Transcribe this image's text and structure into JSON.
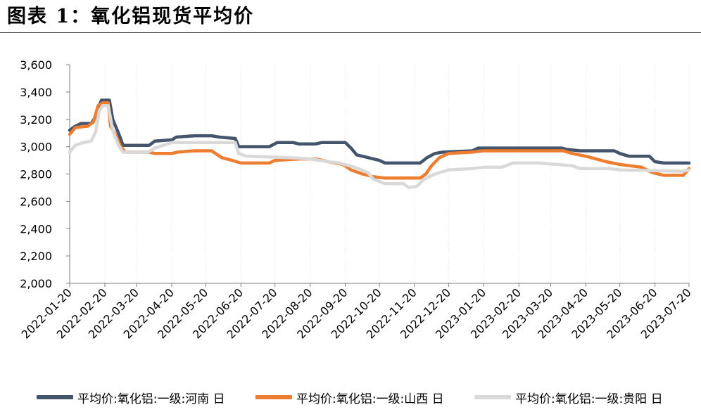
{
  "title": "图表  1：氧化铝现货平均价",
  "chart_data": {
    "type": "line",
    "title": "图表  1：氧化铝现货平均价",
    "ylim": [
      2000,
      3600
    ],
    "yticks": [
      "2,000",
      "2,200",
      "2,400",
      "2,600",
      "2,800",
      "3,000",
      "3,200",
      "3,400",
      "3,600"
    ],
    "xticks": [
      "2022-01-20",
      "2022-02-20",
      "2022-03-20",
      "2022-04-20",
      "2022-05-20",
      "2022-06-20",
      "2022-07-20",
      "2022-08-20",
      "2022-09-20",
      "2022-10-20",
      "2022-11-20",
      "2022-12-20",
      "2023-01-20",
      "2023-02-20",
      "2023-03-20",
      "2023-04-20",
      "2023-05-20",
      "2023-06-20",
      "2023-07-20"
    ],
    "xlim": [
      "2022-01-20",
      "2023-07-20"
    ],
    "grid": "vertical",
    "legend_position": "bottom",
    "series": [
      {
        "name": "平均价:氧化铝:一级:河南 日",
        "color": "#44546a",
        "points": [
          [
            "2022-01-20",
            3120
          ],
          [
            "2022-01-25",
            3150
          ],
          [
            "2022-01-30",
            3170
          ],
          [
            "2022-02-08",
            3170
          ],
          [
            "2022-02-12",
            3220
          ],
          [
            "2022-02-15",
            3300
          ],
          [
            "2022-02-17",
            3340
          ],
          [
            "2022-02-24",
            3340
          ],
          [
            "2022-02-27",
            3200
          ],
          [
            "2022-03-04",
            3100
          ],
          [
            "2022-03-08",
            3010
          ],
          [
            "2022-03-31",
            3010
          ],
          [
            "2022-04-05",
            3040
          ],
          [
            "2022-04-20",
            3050
          ],
          [
            "2022-04-24",
            3070
          ],
          [
            "2022-05-10",
            3080
          ],
          [
            "2022-05-25",
            3080
          ],
          [
            "2022-06-01",
            3070
          ],
          [
            "2022-06-15",
            3060
          ],
          [
            "2022-06-18",
            3000
          ],
          [
            "2022-07-15",
            3000
          ],
          [
            "2022-07-22",
            3030
          ],
          [
            "2022-08-05",
            3030
          ],
          [
            "2022-08-10",
            3020
          ],
          [
            "2022-08-25",
            3020
          ],
          [
            "2022-08-30",
            3030
          ],
          [
            "2022-09-20",
            3030
          ],
          [
            "2022-09-25",
            2990
          ],
          [
            "2022-09-30",
            2940
          ],
          [
            "2022-10-10",
            2920
          ],
          [
            "2022-10-20",
            2900
          ],
          [
            "2022-10-25",
            2880
          ],
          [
            "2022-11-25",
            2880
          ],
          [
            "2022-12-01",
            2920
          ],
          [
            "2022-12-08",
            2950
          ],
          [
            "2022-12-15",
            2960
          ],
          [
            "2023-01-10",
            2970
          ],
          [
            "2023-01-15",
            2990
          ],
          [
            "2023-03-30",
            2990
          ],
          [
            "2023-04-03",
            2980
          ],
          [
            "2023-04-15",
            2970
          ],
          [
            "2023-05-15",
            2970
          ],
          [
            "2023-05-20",
            2950
          ],
          [
            "2023-05-28",
            2930
          ],
          [
            "2023-06-15",
            2930
          ],
          [
            "2023-06-20",
            2890
          ],
          [
            "2023-06-28",
            2880
          ],
          [
            "2023-07-20",
            2880
          ]
        ]
      },
      {
        "name": "平均价:氧化铝:一级:山西 日",
        "color": "#ed7d31",
        "points": [
          [
            "2022-01-20",
            3090
          ],
          [
            "2022-01-25",
            3140
          ],
          [
            "2022-02-05",
            3150
          ],
          [
            "2022-02-10",
            3180
          ],
          [
            "2022-02-14",
            3300
          ],
          [
            "2022-02-18",
            3320
          ],
          [
            "2022-02-23",
            3320
          ],
          [
            "2022-02-25",
            3150
          ],
          [
            "2022-03-02",
            3080
          ],
          [
            "2022-03-06",
            3000
          ],
          [
            "2022-03-10",
            2960
          ],
          [
            "2022-03-31",
            2960
          ],
          [
            "2022-04-05",
            2950
          ],
          [
            "2022-04-20",
            2950
          ],
          [
            "2022-04-25",
            2960
          ],
          [
            "2022-05-10",
            2970
          ],
          [
            "2022-05-25",
            2970
          ],
          [
            "2022-06-03",
            2920
          ],
          [
            "2022-06-12",
            2900
          ],
          [
            "2022-06-20",
            2880
          ],
          [
            "2022-07-15",
            2880
          ],
          [
            "2022-07-20",
            2900
          ],
          [
            "2022-08-10",
            2910
          ],
          [
            "2022-08-25",
            2910
          ],
          [
            "2022-09-05",
            2890
          ],
          [
            "2022-09-18",
            2870
          ],
          [
            "2022-09-25",
            2830
          ],
          [
            "2022-10-05",
            2800
          ],
          [
            "2022-10-15",
            2780
          ],
          [
            "2022-10-25",
            2770
          ],
          [
            "2022-11-25",
            2770
          ],
          [
            "2022-11-30",
            2800
          ],
          [
            "2022-12-05",
            2860
          ],
          [
            "2022-12-12",
            2920
          ],
          [
            "2022-12-20",
            2950
          ],
          [
            "2023-01-10",
            2960
          ],
          [
            "2023-01-20",
            2970
          ],
          [
            "2023-03-31",
            2970
          ],
          [
            "2023-04-08",
            2950
          ],
          [
            "2023-04-20",
            2930
          ],
          [
            "2023-05-08",
            2890
          ],
          [
            "2023-05-20",
            2870
          ],
          [
            "2023-06-08",
            2850
          ],
          [
            "2023-06-18",
            2810
          ],
          [
            "2023-06-28",
            2790
          ],
          [
            "2023-07-15",
            2790
          ],
          [
            "2023-07-20",
            2840
          ]
        ]
      },
      {
        "name": "平均价:氧化铝:一级:贵阳 日",
        "color": "#d9d9d9",
        "points": [
          [
            "2022-01-20",
            2960
          ],
          [
            "2022-01-25",
            3010
          ],
          [
            "2022-02-01",
            3030
          ],
          [
            "2022-02-08",
            3040
          ],
          [
            "2022-02-12",
            3110
          ],
          [
            "2022-02-15",
            3260
          ],
          [
            "2022-02-18",
            3300
          ],
          [
            "2022-02-23",
            3300
          ],
          [
            "2022-02-27",
            3120
          ],
          [
            "2022-03-04",
            3010
          ],
          [
            "2022-03-08",
            2960
          ],
          [
            "2022-03-30",
            2960
          ],
          [
            "2022-04-05",
            2990
          ],
          [
            "2022-04-20",
            3030
          ],
          [
            "2022-05-20",
            3030
          ],
          [
            "2022-06-15",
            3030
          ],
          [
            "2022-06-18",
            2950
          ],
          [
            "2022-06-25",
            2930
          ],
          [
            "2022-08-01",
            2920
          ],
          [
            "2022-08-20",
            2910
          ],
          [
            "2022-09-05",
            2890
          ],
          [
            "2022-09-15",
            2880
          ],
          [
            "2022-09-28",
            2850
          ],
          [
            "2022-10-10",
            2810
          ],
          [
            "2022-10-15",
            2760
          ],
          [
            "2022-10-25",
            2730
          ],
          [
            "2022-11-10",
            2730
          ],
          [
            "2022-11-15",
            2700
          ],
          [
            "2022-11-22",
            2710
          ],
          [
            "2022-11-28",
            2760
          ],
          [
            "2022-12-08",
            2800
          ],
          [
            "2022-12-20",
            2830
          ],
          [
            "2023-01-10",
            2840
          ],
          [
            "2023-01-20",
            2850
          ],
          [
            "2023-02-05",
            2850
          ],
          [
            "2023-02-15",
            2880
          ],
          [
            "2023-03-10",
            2880
          ],
          [
            "2023-03-25",
            2870
          ],
          [
            "2023-04-08",
            2860
          ],
          [
            "2023-04-15",
            2840
          ],
          [
            "2023-05-10",
            2840
          ],
          [
            "2023-05-20",
            2830
          ],
          [
            "2023-07-15",
            2820
          ],
          [
            "2023-07-20",
            2830
          ]
        ]
      }
    ]
  }
}
